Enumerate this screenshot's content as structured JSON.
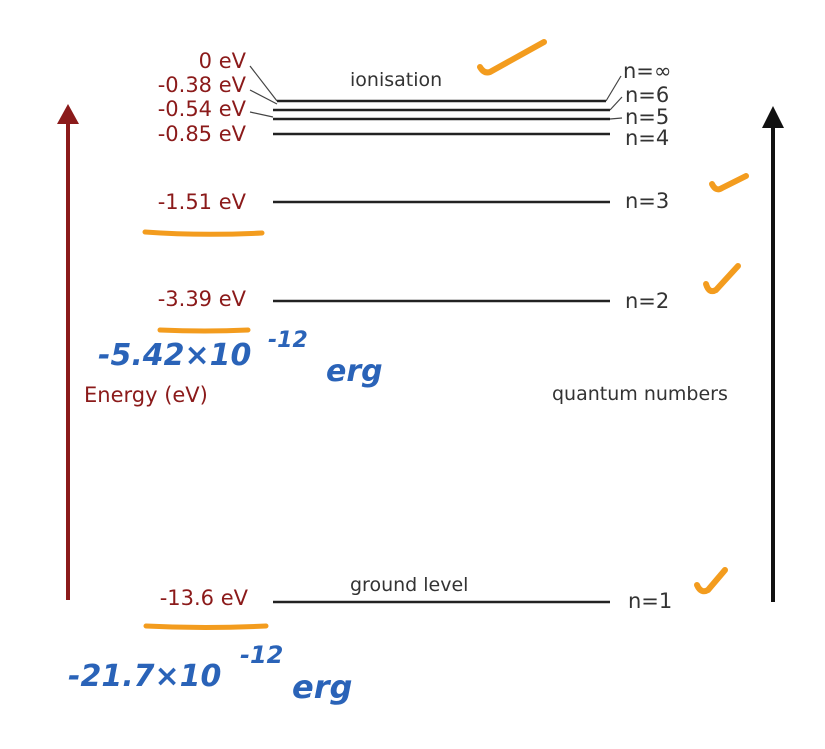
{
  "axes": {
    "energy_label": "Energy (eV)",
    "quantum_label": "quantum numbers"
  },
  "levels": [
    {
      "energy": "0 eV",
      "n": "n=∞"
    },
    {
      "energy": "-0.38 eV",
      "n": "n=6"
    },
    {
      "energy": "-0.54 eV",
      "n": "n=5"
    },
    {
      "energy": "-0.85 eV",
      "n": "n=4"
    },
    {
      "energy": "-1.51 eV",
      "n": "n=3"
    },
    {
      "energy": "-3.39 eV",
      "n": "n=2"
    },
    {
      "energy": "-13.6 eV",
      "n": "n=1"
    }
  ],
  "annotations": {
    "ionisation": "ionisation",
    "ground_level": "ground level"
  },
  "handwriting": {
    "n2_erg_main": "-5.42×10",
    "n2_erg_exp": "-12",
    "n2_erg_unit": "erg",
    "n1_erg_main": "-21.7×10",
    "n1_erg_exp": "-12",
    "n1_erg_unit": "erg"
  },
  "colors": {
    "energy_text": "#8b1a1a",
    "orange_marks": "#f39c1e",
    "blue_handwriting": "#2a63b8",
    "lines": "#222222"
  }
}
